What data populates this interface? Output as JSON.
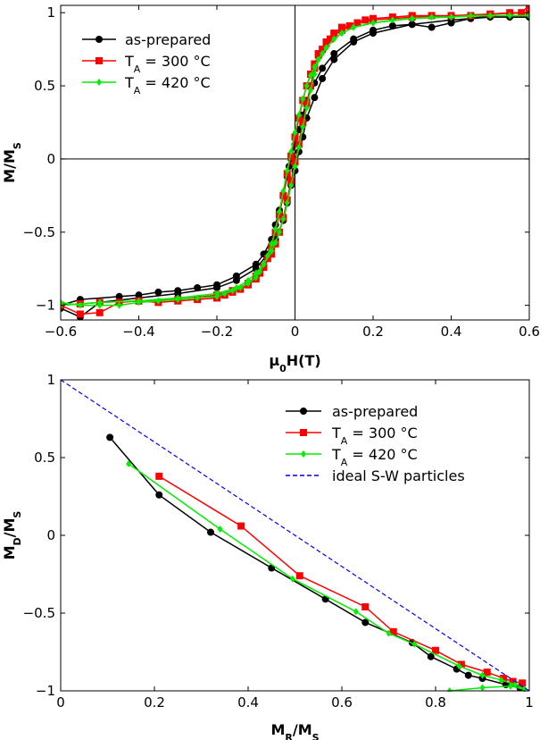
{
  "chart_data": [
    {
      "type": "line",
      "xlabel": "μ0H(T)",
      "xlabel_main": "μ",
      "xlabel_sub": "0",
      "xlabel_rest": "H(T)",
      "ylabel_main": "M/M",
      "ylabel_sub": "S",
      "xlim": [
        -0.6,
        0.6
      ],
      "ylim": [
        -1.1,
        1.05
      ],
      "xticks": [
        -0.6,
        -0.4,
        -0.2,
        0,
        0.2,
        0.4,
        0.6
      ],
      "xtick_labels": [
        "−0.6",
        "−0.4",
        "−0.2",
        "0",
        "0.2",
        "0.4",
        "0.6"
      ],
      "yticks": [
        -1,
        -0.5,
        0,
        0.5,
        1
      ],
      "ytick_labels": [
        "−1",
        "−0.5",
        "0",
        "0.5",
        "1"
      ],
      "legend_position": "top-left",
      "series": [
        {
          "name": "as-prepared",
          "label_plain": "as-prepared",
          "color": "#000000",
          "marker": "circle",
          "branch_upper": {
            "x": [
              -0.6,
              -0.55,
              -0.45,
              -0.4,
              -0.35,
              -0.3,
              -0.25,
              -0.2,
              -0.15,
              -0.1,
              -0.08,
              -0.06,
              -0.05,
              -0.04,
              -0.03,
              -0.02,
              -0.015,
              -0.01,
              0,
              0.01,
              0.02,
              0.03,
              0.05,
              0.07,
              0.1,
              0.15,
              0.2,
              0.25,
              0.3,
              0.35,
              0.4,
              0.45,
              0.5,
              0.55,
              0.6
            ],
            "y": [
              -1.0,
              -0.96,
              -0.94,
              -0.93,
              -0.91,
              -0.9,
              -0.88,
              -0.86,
              -0.8,
              -0.72,
              -0.65,
              -0.55,
              -0.45,
              -0.35,
              -0.25,
              -0.12,
              -0.05,
              0.0,
              0.1,
              0.2,
              0.3,
              0.4,
              0.52,
              0.62,
              0.72,
              0.82,
              0.88,
              0.91,
              0.92,
              0.9,
              0.93,
              0.96,
              0.98,
              0.97,
              0.97
            ]
          },
          "branch_lower": {
            "x": [
              0.6,
              0.5,
              0.4,
              0.3,
              0.2,
              0.15,
              0.1,
              0.07,
              0.05,
              0.03,
              0.02,
              0.01,
              0,
              -0.01,
              -0.02,
              -0.03,
              -0.05,
              -0.07,
              -0.1,
              -0.15,
              -0.2,
              -0.3,
              -0.4,
              -0.5,
              -0.55,
              -0.6
            ],
            "y": [
              0.97,
              0.97,
              0.95,
              0.92,
              0.86,
              0.8,
              0.68,
              0.55,
              0.42,
              0.28,
              0.15,
              0.05,
              -0.08,
              -0.18,
              -0.3,
              -0.42,
              -0.55,
              -0.65,
              -0.75,
              -0.83,
              -0.88,
              -0.92,
              -0.95,
              -0.98,
              -1.08,
              -1.02
            ]
          }
        },
        {
          "name": "TA = 300 °C",
          "label_plain": "T",
          "label_sub": "A",
          "label_rest": " = 300 °C",
          "color": "#ff0000",
          "marker": "square",
          "branch_upper": {
            "x": [
              -0.6,
              -0.55,
              -0.5,
              -0.45,
              -0.4,
              -0.35,
              -0.3,
              -0.25,
              -0.2,
              -0.18,
              -0.16,
              -0.14,
              -0.12,
              -0.1,
              -0.09,
              -0.08,
              -0.07,
              -0.06,
              -0.05,
              -0.04,
              -0.03,
              -0.02,
              -0.01,
              0,
              0.01,
              0.02,
              0.03,
              0.04,
              0.05,
              0.06,
              0.07,
              0.08,
              0.09,
              0.1,
              0.12,
              0.14,
              0.16,
              0.18,
              0.2,
              0.25,
              0.3,
              0.35,
              0.4,
              0.45,
              0.5,
              0.55,
              0.58,
              0.6
            ],
            "y": [
              -1.0,
              -1.06,
              -1.05,
              -0.98,
              -0.97,
              -0.98,
              -0.97,
              -0.96,
              -0.95,
              -0.93,
              -0.91,
              -0.89,
              -0.86,
              -0.82,
              -0.78,
              -0.74,
              -0.68,
              -0.6,
              -0.5,
              -0.38,
              -0.25,
              -0.1,
              0.02,
              0.15,
              0.28,
              0.4,
              0.5,
              0.58,
              0.65,
              0.71,
              0.75,
              0.79,
              0.82,
              0.85,
              0.88,
              0.91,
              0.93,
              0.95,
              0.96,
              0.97,
              0.98,
              0.98,
              0.98,
              0.98,
              0.99,
              1.0,
              1.0,
              1.05
            ]
          },
          "branch_lower": {
            "x": [
              0.6,
              0.5,
              0.4,
              0.3,
              0.2,
              0.16,
              0.12,
              0.1,
              0.08,
              0.06,
              0.05,
              0.04,
              0.03,
              0.02,
              0.01,
              0,
              -0.01,
              -0.02,
              -0.03,
              -0.04,
              -0.05,
              -0.06,
              -0.08,
              -0.1,
              -0.12,
              -0.16,
              -0.2,
              -0.3,
              -0.4,
              -0.5,
              -0.55,
              -0.6
            ],
            "y": [
              1.0,
              0.99,
              0.98,
              0.97,
              0.95,
              0.93,
              0.9,
              0.86,
              0.8,
              0.72,
              0.62,
              0.5,
              0.38,
              0.25,
              0.1,
              -0.02,
              -0.15,
              -0.28,
              -0.4,
              -0.5,
              -0.58,
              -0.65,
              -0.74,
              -0.8,
              -0.85,
              -0.9,
              -0.93,
              -0.96,
              -0.97,
              -0.98,
              -0.99,
              -1.0
            ]
          }
        },
        {
          "name": "TA = 420 °C",
          "label_plain": "T",
          "label_sub": "A",
          "label_rest": " = 420 °C",
          "color": "#00ee00",
          "marker": "diamond",
          "branch_upper": {
            "x": [
              -0.6,
              -0.55,
              -0.5,
              -0.45,
              -0.4,
              -0.35,
              -0.3,
              -0.25,
              -0.2,
              -0.18,
              -0.16,
              -0.14,
              -0.12,
              -0.1,
              -0.09,
              -0.08,
              -0.07,
              -0.06,
              -0.05,
              -0.04,
              -0.03,
              -0.02,
              -0.01,
              0,
              0.01,
              0.02,
              0.03,
              0.04,
              0.05,
              0.06,
              0.07,
              0.08,
              0.1,
              0.12,
              0.15,
              0.2,
              0.25,
              0.3,
              0.35,
              0.4,
              0.45,
              0.5,
              0.55,
              0.6
            ],
            "y": [
              -0.98,
              -1.0,
              -1.0,
              -1.0,
              -0.98,
              -0.97,
              -0.96,
              -0.95,
              -0.94,
              -0.92,
              -0.9,
              -0.88,
              -0.85,
              -0.81,
              -0.77,
              -0.72,
              -0.66,
              -0.58,
              -0.48,
              -0.36,
              -0.22,
              -0.08,
              0.05,
              0.18,
              0.3,
              0.41,
              0.5,
              0.57,
              0.63,
              0.68,
              0.72,
              0.76,
              0.82,
              0.86,
              0.9,
              0.93,
              0.95,
              0.96,
              0.97,
              0.97,
              0.98,
              0.98,
              0.98,
              0.98
            ]
          },
          "branch_lower": {
            "x": [
              0.6,
              0.5,
              0.4,
              0.3,
              0.2,
              0.15,
              0.12,
              0.1,
              0.08,
              0.06,
              0.05,
              0.04,
              0.03,
              0.02,
              0.01,
              0,
              -0.01,
              -0.02,
              -0.03,
              -0.04,
              -0.05,
              -0.06,
              -0.08,
              -0.1,
              -0.12,
              -0.15,
              -0.2,
              -0.3,
              -0.4,
              -0.5,
              -0.6
            ],
            "y": [
              0.98,
              0.98,
              0.97,
              0.96,
              0.93,
              0.9,
              0.86,
              0.82,
              0.76,
              0.68,
              0.58,
              0.47,
              0.35,
              0.22,
              0.08,
              -0.05,
              -0.18,
              -0.3,
              -0.41,
              -0.5,
              -0.57,
              -0.63,
              -0.72,
              -0.78,
              -0.83,
              -0.88,
              -0.92,
              -0.95,
              -0.97,
              -0.98,
              -1.0
            ]
          }
        }
      ]
    },
    {
      "type": "line",
      "xlabel_main": "M",
      "xlabel_sub": "R",
      "xlabel_rest": "/M",
      "xlabel_sub2": "S",
      "ylabel_main": "M",
      "ylabel_sub": "D",
      "ylabel_rest": "/M",
      "ylabel_sub2": "S",
      "xlim": [
        0,
        1
      ],
      "ylim": [
        -1,
        1
      ],
      "xticks": [
        0,
        0.2,
        0.4,
        0.6,
        0.8,
        1
      ],
      "xtick_labels": [
        "0",
        "0.2",
        "0.4",
        "0.6",
        "0.8",
        "1"
      ],
      "yticks": [
        -1,
        -0.5,
        0,
        0.5,
        1
      ],
      "ytick_labels": [
        "−1",
        "−0.5",
        "0",
        "0.5",
        "1"
      ],
      "legend_position": "top-right",
      "series": [
        {
          "name": "as-prepared",
          "label_plain": "as-prepared",
          "color": "#000000",
          "marker": "circle",
          "x": [
            0.105,
            0.21,
            0.32,
            0.45,
            0.565,
            0.65,
            0.75,
            0.79,
            0.845,
            0.87,
            0.9,
            0.95,
            0.98
          ],
          "y": [
            0.63,
            0.26,
            0.02,
            -0.21,
            -0.41,
            -0.56,
            -0.69,
            -0.78,
            -0.86,
            -0.9,
            -0.92,
            -0.96,
            -0.98
          ]
        },
        {
          "name": "TA = 300 °C",
          "label_plain": "T",
          "label_sub": "A",
          "label_rest": " = 300 °C",
          "color": "#ff0000",
          "marker": "square",
          "x": [
            0.21,
            0.385,
            0.51,
            0.65,
            0.71,
            0.8,
            0.855,
            0.91,
            0.945,
            0.965,
            0.985
          ],
          "y": [
            0.38,
            0.06,
            -0.26,
            -0.46,
            -0.62,
            -0.74,
            -0.83,
            -0.88,
            -0.92,
            -0.94,
            -0.95
          ]
        },
        {
          "name": "TA = 420 °C",
          "label_plain": "T",
          "label_sub": "A",
          "label_rest": " = 420 °C",
          "color": "#00ee00",
          "marker": "diamond",
          "x": [
            0.145,
            0.34,
            0.495,
            0.63,
            0.7,
            0.755,
            0.85,
            0.9,
            0.94,
            0.97,
            0.99,
            0.96,
            0.9,
            0.83
          ],
          "y": [
            0.46,
            0.04,
            -0.28,
            -0.49,
            -0.63,
            -0.7,
            -0.84,
            -0.9,
            -0.93,
            -0.96,
            -0.99,
            -0.97,
            -0.98,
            -1.0
          ]
        },
        {
          "name": "ideal S-W particles",
          "label_plain": "ideal S-W particles",
          "color": "#0000ee",
          "dashed": true,
          "x": [
            0,
            1
          ],
          "y": [
            1,
            -1
          ]
        }
      ]
    }
  ]
}
